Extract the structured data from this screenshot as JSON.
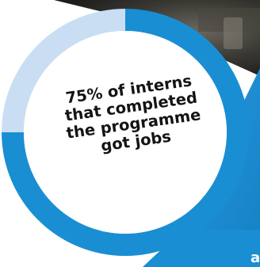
{
  "stat": {
    "percent": 75,
    "lines": [
      "75% of interns",
      "that completed",
      "the programme",
      "got jobs"
    ]
  },
  "corner_text": "a",
  "colors": {
    "ring_filled": "#1a8ed3",
    "ring_remaining": "#c9def3",
    "panel_blue": "#1a8ed3",
    "photo_dark": "#2f2e2b",
    "text": "#141414"
  }
}
